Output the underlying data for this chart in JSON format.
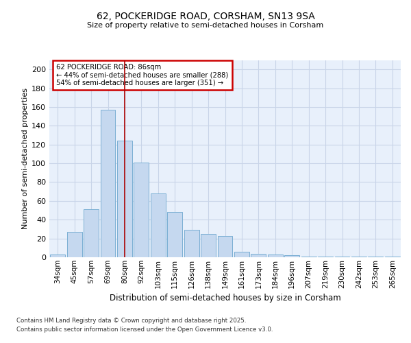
{
  "title_line1": "62, POCKERIDGE ROAD, CORSHAM, SN13 9SA",
  "title_line2": "Size of property relative to semi-detached houses in Corsham",
  "xlabel": "Distribution of semi-detached houses by size in Corsham",
  "ylabel": "Number of semi-detached properties",
  "categories": [
    "34sqm",
    "45sqm",
    "57sqm",
    "69sqm",
    "80sqm",
    "92sqm",
    "103sqm",
    "115sqm",
    "126sqm",
    "138sqm",
    "149sqm",
    "161sqm",
    "173sqm",
    "184sqm",
    "196sqm",
    "207sqm",
    "219sqm",
    "230sqm",
    "242sqm",
    "253sqm",
    "265sqm"
  ],
  "values": [
    3,
    27,
    51,
    157,
    124,
    101,
    68,
    48,
    29,
    25,
    23,
    6,
    4,
    3,
    2,
    1,
    1,
    1,
    1,
    1,
    1
  ],
  "subject_bin_index": 4,
  "subject_label": "62 POCKERIDGE ROAD: 86sqm",
  "pct_smaller": 44,
  "count_smaller": 288,
  "pct_larger": 54,
  "count_larger": 351,
  "bar_color": "#c5d8ef",
  "bar_edgecolor": "#7bafd4",
  "subject_vline_color": "#aa0000",
  "annotation_box_edgecolor": "#cc0000",
  "annotation_box_facecolor": "#ffffff",
  "background_color": "#e8f0fb",
  "grid_color": "#c8d4e8",
  "footer_line1": "Contains HM Land Registry data © Crown copyright and database right 2025.",
  "footer_line2": "Contains public sector information licensed under the Open Government Licence v3.0.",
  "ylim": [
    0,
    210
  ],
  "yticks": [
    0,
    20,
    40,
    60,
    80,
    100,
    120,
    140,
    160,
    180,
    200
  ]
}
